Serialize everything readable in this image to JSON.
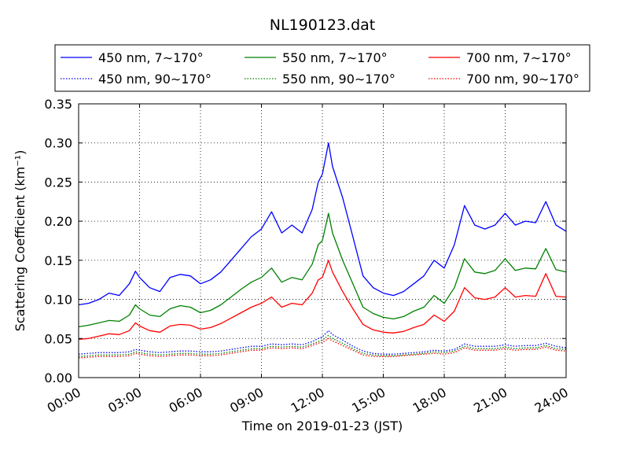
{
  "chart_data": {
    "type": "line",
    "title": "NL190123.dat",
    "xlabel": "Time on 2019-01-23 (JST)",
    "ylabel": "Scattering Coefficient (km⁻¹)",
    "xlim": [
      "2019-01-23 00:00",
      "2019-01-24 00:00"
    ],
    "ylim": [
      0.0,
      0.35
    ],
    "xticks": [
      "00:00",
      "03:00",
      "06:00",
      "09:00",
      "12:00",
      "15:00",
      "18:00",
      "21:00",
      "24:00"
    ],
    "yticks": [
      "0.00",
      "0.05",
      "0.10",
      "0.15",
      "0.20",
      "0.25",
      "0.30",
      "0.35"
    ],
    "grid": true,
    "legend_position": "top",
    "x_hours": [
      0,
      0.5,
      1,
      1.5,
      2,
      2.5,
      2.8,
      3,
      3.5,
      4,
      4.5,
      5,
      5.5,
      6,
      6.5,
      7,
      7.5,
      8,
      8.5,
      9,
      9.5,
      10,
      10.5,
      11,
      11.5,
      11.8,
      12,
      12.3,
      12.5,
      13,
      13.5,
      14,
      14.5,
      15,
      15.5,
      16,
      16.5,
      17,
      17.5,
      18,
      18.5,
      19,
      19.5,
      20,
      20.5,
      21,
      21.5,
      22,
      22.5,
      23,
      23.5,
      24
    ],
    "series": [
      {
        "name": "450 nm, 7∼170°",
        "color": "#0000ff",
        "style": "solid",
        "values": [
          0.093,
          0.095,
          0.1,
          0.108,
          0.105,
          0.12,
          0.136,
          0.128,
          0.115,
          0.11,
          0.128,
          0.132,
          0.13,
          0.12,
          0.125,
          0.135,
          0.15,
          0.165,
          0.18,
          0.19,
          0.212,
          0.185,
          0.195,
          0.185,
          0.215,
          0.25,
          0.26,
          0.3,
          0.27,
          0.23,
          0.18,
          0.13,
          0.115,
          0.108,
          0.105,
          0.11,
          0.12,
          0.13,
          0.15,
          0.14,
          0.17,
          0.22,
          0.195,
          0.19,
          0.195,
          0.21,
          0.195,
          0.2,
          0.198,
          0.225,
          0.195,
          0.187
        ]
      },
      {
        "name": "450 nm, 90∼170°",
        "color": "#0000ff",
        "style": "dotted",
        "values": [
          0.03,
          0.031,
          0.032,
          0.032,
          0.032,
          0.033,
          0.036,
          0.035,
          0.033,
          0.032,
          0.033,
          0.034,
          0.034,
          0.033,
          0.033,
          0.034,
          0.036,
          0.038,
          0.04,
          0.04,
          0.043,
          0.042,
          0.043,
          0.042,
          0.046,
          0.05,
          0.052,
          0.06,
          0.055,
          0.048,
          0.04,
          0.034,
          0.031,
          0.03,
          0.03,
          0.031,
          0.032,
          0.033,
          0.035,
          0.034,
          0.036,
          0.043,
          0.04,
          0.04,
          0.04,
          0.042,
          0.04,
          0.041,
          0.041,
          0.044,
          0.04,
          0.038
        ]
      },
      {
        "name": "550 nm, 7∼170°",
        "color": "#008000",
        "style": "solid",
        "values": [
          0.065,
          0.067,
          0.07,
          0.073,
          0.072,
          0.08,
          0.093,
          0.088,
          0.08,
          0.078,
          0.088,
          0.092,
          0.09,
          0.083,
          0.086,
          0.093,
          0.103,
          0.113,
          0.122,
          0.128,
          0.14,
          0.122,
          0.128,
          0.125,
          0.145,
          0.17,
          0.175,
          0.21,
          0.185,
          0.15,
          0.12,
          0.09,
          0.082,
          0.077,
          0.075,
          0.078,
          0.085,
          0.09,
          0.105,
          0.095,
          0.115,
          0.152,
          0.135,
          0.133,
          0.137,
          0.152,
          0.137,
          0.14,
          0.139,
          0.165,
          0.138,
          0.135
        ]
      },
      {
        "name": "550 nm, 90∼170°",
        "color": "#008000",
        "style": "dotted",
        "values": [
          0.027,
          0.028,
          0.029,
          0.029,
          0.029,
          0.03,
          0.033,
          0.032,
          0.03,
          0.029,
          0.03,
          0.031,
          0.031,
          0.03,
          0.03,
          0.031,
          0.033,
          0.035,
          0.037,
          0.037,
          0.04,
          0.039,
          0.04,
          0.039,
          0.043,
          0.046,
          0.048,
          0.054,
          0.05,
          0.044,
          0.037,
          0.031,
          0.029,
          0.028,
          0.028,
          0.029,
          0.03,
          0.031,
          0.033,
          0.032,
          0.034,
          0.04,
          0.037,
          0.037,
          0.037,
          0.039,
          0.037,
          0.038,
          0.038,
          0.041,
          0.037,
          0.036
        ]
      },
      {
        "name": "700 nm, 7∼170°",
        "color": "#ff0000",
        "style": "solid",
        "values": [
          0.049,
          0.05,
          0.053,
          0.056,
          0.055,
          0.06,
          0.07,
          0.066,
          0.06,
          0.058,
          0.066,
          0.068,
          0.067,
          0.062,
          0.064,
          0.069,
          0.076,
          0.083,
          0.09,
          0.095,
          0.103,
          0.09,
          0.095,
          0.093,
          0.108,
          0.125,
          0.128,
          0.15,
          0.135,
          0.11,
          0.088,
          0.068,
          0.061,
          0.058,
          0.057,
          0.059,
          0.064,
          0.068,
          0.08,
          0.072,
          0.085,
          0.115,
          0.102,
          0.1,
          0.103,
          0.115,
          0.103,
          0.105,
          0.104,
          0.133,
          0.104,
          0.103
        ]
      },
      {
        "name": "700 nm, 90∼170°",
        "color": "#ff0000",
        "style": "dotted",
        "values": [
          0.025,
          0.026,
          0.027,
          0.027,
          0.027,
          0.028,
          0.031,
          0.03,
          0.028,
          0.027,
          0.028,
          0.029,
          0.029,
          0.028,
          0.028,
          0.029,
          0.031,
          0.033,
          0.035,
          0.035,
          0.038,
          0.037,
          0.038,
          0.037,
          0.041,
          0.044,
          0.045,
          0.05,
          0.047,
          0.041,
          0.035,
          0.029,
          0.027,
          0.027,
          0.027,
          0.028,
          0.029,
          0.03,
          0.031,
          0.03,
          0.032,
          0.038,
          0.035,
          0.035,
          0.035,
          0.037,
          0.035,
          0.036,
          0.036,
          0.039,
          0.035,
          0.034
        ]
      }
    ]
  }
}
